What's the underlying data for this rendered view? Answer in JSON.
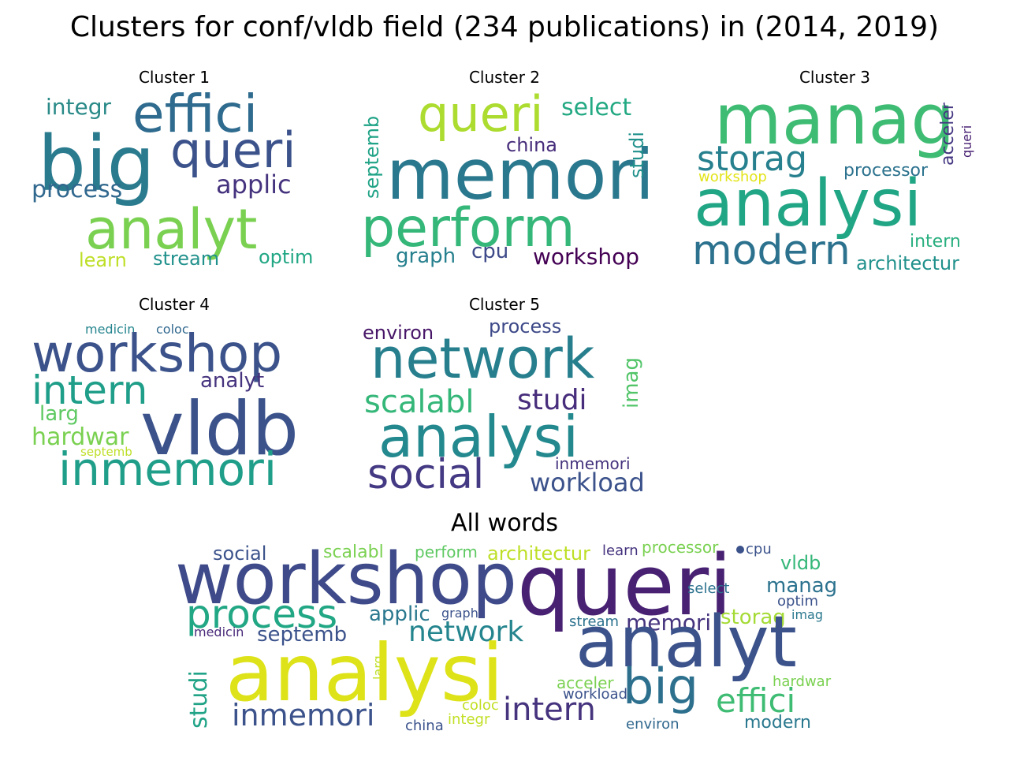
{
  "title": "Clusters for conf/vldb field (234 publications) in (2014, 2019)",
  "clouds": [
    {
      "name": "cluster-1",
      "title": "Cluster 1",
      "words": [
        {
          "text": "big",
          "color": "#2a7b8e"
        },
        {
          "text": "effici",
          "color": "#2f6b8e"
        },
        {
          "text": "queri",
          "color": "#3b528b"
        },
        {
          "text": "analyt",
          "color": "#7ad151"
        },
        {
          "text": "integr",
          "color": "#2a8a88"
        },
        {
          "text": "applic",
          "color": "#46337e"
        },
        {
          "text": "process",
          "color": "#31688e"
        },
        {
          "text": "learn",
          "color": "#bddf26"
        },
        {
          "text": "stream",
          "color": "#21918c"
        },
        {
          "text": "optim",
          "color": "#22a785"
        }
      ]
    },
    {
      "name": "cluster-2",
      "title": "Cluster 2",
      "words": [
        {
          "text": "queri",
          "color": "#addc30"
        },
        {
          "text": "select",
          "color": "#23a983"
        },
        {
          "text": "memori",
          "color": "#2a788e"
        },
        {
          "text": "china",
          "color": "#472d7b"
        },
        {
          "text": "septemb",
          "color": "#20a386"
        },
        {
          "text": "studi",
          "color": "#21918c"
        },
        {
          "text": "perform",
          "color": "#35b779"
        },
        {
          "text": "graph",
          "color": "#27808e"
        },
        {
          "text": "cpu",
          "color": "#3e4a89"
        },
        {
          "text": "workshop",
          "color": "#440154"
        }
      ]
    },
    {
      "name": "cluster-3",
      "title": "Cluster 3",
      "words": [
        {
          "text": "manag",
          "color": "#3fbc73"
        },
        {
          "text": "storag",
          "color": "#27808e"
        },
        {
          "text": "workshop",
          "color": "#e2e418"
        },
        {
          "text": "processor",
          "color": "#2c728e"
        },
        {
          "text": "acceler",
          "color": "#453781"
        },
        {
          "text": "queri",
          "color": "#482173"
        },
        {
          "text": "analysi",
          "color": "#21a685"
        },
        {
          "text": "modern",
          "color": "#2c728e"
        },
        {
          "text": "intern",
          "color": "#29af7f"
        },
        {
          "text": "architectur",
          "color": "#21918c"
        }
      ]
    },
    {
      "name": "cluster-4",
      "title": "Cluster 4",
      "words": [
        {
          "text": "medicin",
          "color": "#25858e"
        },
        {
          "text": "coloc",
          "color": "#31688e"
        },
        {
          "text": "workshop",
          "color": "#3b528b"
        },
        {
          "text": "intern",
          "color": "#1f9e89"
        },
        {
          "text": "analyt",
          "color": "#46337e"
        },
        {
          "text": "larg",
          "color": "#5ec962"
        },
        {
          "text": "vldb",
          "color": "#3b528b"
        },
        {
          "text": "hardwar",
          "color": "#7ad151"
        },
        {
          "text": "septemb",
          "color": "#bddf26"
        },
        {
          "text": "inmemori",
          "color": "#1f9e89"
        }
      ]
    },
    {
      "name": "cluster-5",
      "title": "Cluster 5",
      "words": [
        {
          "text": "environ",
          "color": "#481668"
        },
        {
          "text": "process",
          "color": "#3e4a89"
        },
        {
          "text": "network",
          "color": "#277f8e"
        },
        {
          "text": "imag",
          "color": "#52c569"
        },
        {
          "text": "scalabl",
          "color": "#35b779"
        },
        {
          "text": "studi",
          "color": "#472d7b"
        },
        {
          "text": "analysi",
          "color": "#23898e"
        },
        {
          "text": "inmemori",
          "color": "#46337e"
        },
        {
          "text": "social",
          "color": "#443983"
        },
        {
          "text": "workload",
          "color": "#3b528b"
        }
      ]
    },
    {
      "name": "all-words",
      "title": "All words",
      "words": [
        {
          "text": "social",
          "color": "#3b528b"
        },
        {
          "text": "scalabl",
          "color": "#7ad151"
        },
        {
          "text": "perform",
          "color": "#5ec962"
        },
        {
          "text": "architectur",
          "color": "#bddf26"
        },
        {
          "text": "learn",
          "color": "#46337e"
        },
        {
          "text": "processor",
          "color": "#7ad151"
        },
        {
          "text": "cpu",
          "color": "#3b528b"
        },
        {
          "text": "workshop",
          "color": "#3e4a89"
        },
        {
          "text": "queri",
          "color": "#482173"
        },
        {
          "text": "vldb",
          "color": "#35b779"
        },
        {
          "text": "process",
          "color": "#22a785"
        },
        {
          "text": "applic",
          "color": "#2a788e"
        },
        {
          "text": "graph",
          "color": "#3b528b"
        },
        {
          "text": "select",
          "color": "#2c728e"
        },
        {
          "text": "manag",
          "color": "#2c728e"
        },
        {
          "text": "optim",
          "color": "#3b528b"
        },
        {
          "text": "medicin",
          "color": "#482878"
        },
        {
          "text": "septemb",
          "color": "#3b528b"
        },
        {
          "text": "network",
          "color": "#25858e"
        },
        {
          "text": "stream",
          "color": "#2c728e"
        },
        {
          "text": "memori",
          "color": "#46337e"
        },
        {
          "text": "storag",
          "color": "#a5db36"
        },
        {
          "text": "imag",
          "color": "#2a788e"
        },
        {
          "text": "studi",
          "color": "#20a386"
        },
        {
          "text": "larg",
          "color": "#bddf26"
        },
        {
          "text": "analysi",
          "color": "#dde318"
        },
        {
          "text": "analyt",
          "color": "#3b528b"
        },
        {
          "text": "acceler",
          "color": "#7ad151"
        },
        {
          "text": "hardwar",
          "color": "#7ad151"
        },
        {
          "text": "big",
          "color": "#2d708e"
        },
        {
          "text": "effici",
          "color": "#3fbc73"
        },
        {
          "text": "workload",
          "color": "#3b528b"
        },
        {
          "text": "coloc",
          "color": "#c2df23"
        },
        {
          "text": "inmemori",
          "color": "#3b528b"
        },
        {
          "text": "intern",
          "color": "#46337e"
        },
        {
          "text": "modern",
          "color": "#2a788e"
        },
        {
          "text": "china",
          "color": "#3b528b"
        },
        {
          "text": "integr",
          "color": "#c2df23"
        },
        {
          "text": "environ",
          "color": "#31688e"
        }
      ]
    }
  ]
}
